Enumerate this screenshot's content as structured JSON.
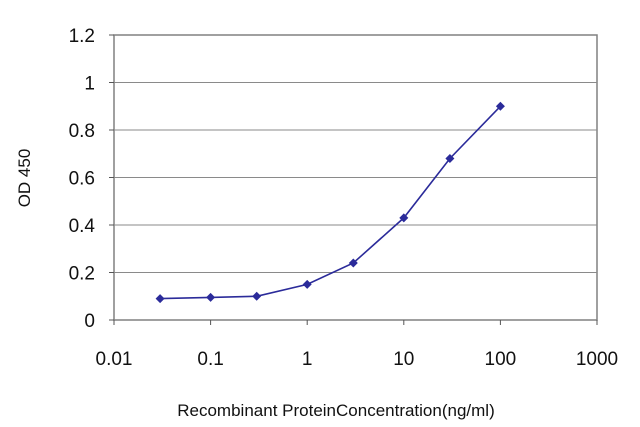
{
  "chart_data": {
    "type": "line",
    "title": "",
    "xlabel": "Recombinant ProteinConcentration(ng/ml)",
    "ylabel": "OD 450",
    "x_scale": "log",
    "xlim": [
      0.01,
      1000
    ],
    "ylim": [
      0,
      1.2
    ],
    "x_ticks": [
      0.01,
      0.1,
      1,
      10,
      100,
      1000
    ],
    "x_tick_labels": [
      "0.01",
      "0.1",
      "1",
      "10",
      "100",
      "1000"
    ],
    "y_ticks": [
      0,
      0.2,
      0.4,
      0.6,
      0.8,
      1,
      1.2
    ],
    "y_tick_labels": [
      "0",
      "0.2",
      "0.4",
      "0.6",
      "0.8",
      "1",
      "1.2"
    ],
    "grid": "horizontal",
    "legend": "none",
    "series": [
      {
        "color": "#2b2b9a",
        "marker": "diamond",
        "x": [
          0.03,
          0.1,
          0.3,
          1,
          3,
          10,
          30,
          100
        ],
        "y": [
          0.09,
          0.095,
          0.1,
          0.15,
          0.24,
          0.43,
          0.68,
          0.9
        ]
      }
    ]
  }
}
